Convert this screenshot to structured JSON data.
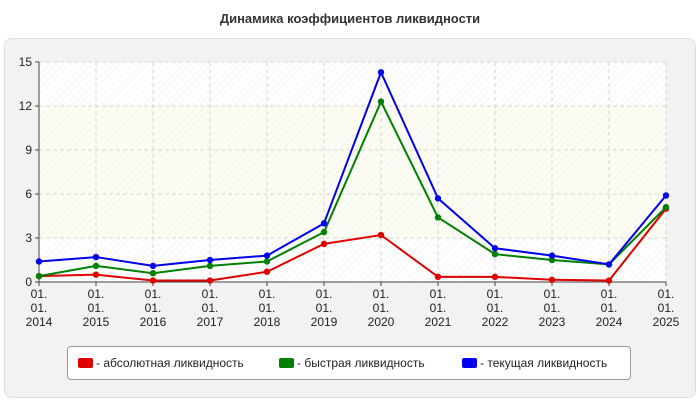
{
  "chart_data": {
    "type": "line",
    "title": "Динамика коэффициентов ликвидности",
    "xlabel": "",
    "ylabel": "",
    "categories": [
      [
        "01.",
        "01.",
        "2014"
      ],
      [
        "01.",
        "01.",
        "2015"
      ],
      [
        "01.",
        "01.",
        "2016"
      ],
      [
        "01.",
        "01.",
        "2017"
      ],
      [
        "01.",
        "01.",
        "2018"
      ],
      [
        "01.",
        "01.",
        "2019"
      ],
      [
        "01.",
        "01.",
        "2020"
      ],
      [
        "01.",
        "01.",
        "2021"
      ],
      [
        "01.",
        "01.",
        "2022"
      ],
      [
        "01.",
        "01.",
        "2023"
      ],
      [
        "01.",
        "01.",
        "2024"
      ],
      [
        "01.",
        "01.",
        "2025"
      ]
    ],
    "ylim": [
      0,
      15
    ],
    "yticks": [
      0,
      3,
      6,
      9,
      12,
      15
    ],
    "grid": true,
    "legend_position": "bottom",
    "series": [
      {
        "name": "- абсолютная ликвидность",
        "color": "#e00000",
        "values": [
          0.4,
          0.5,
          0.1,
          0.1,
          0.7,
          2.6,
          3.2,
          0.35,
          0.35,
          0.15,
          0.1,
          5.0
        ]
      },
      {
        "name": "- быстрая ликвидность",
        "color": "#008000",
        "values": [
          0.4,
          1.1,
          0.6,
          1.1,
          1.4,
          3.4,
          12.3,
          4.4,
          1.9,
          1.5,
          1.2,
          5.1
        ]
      },
      {
        "name": "- текущая ликвидность",
        "color": "#0000ee",
        "values": [
          1.4,
          1.7,
          1.1,
          1.5,
          1.8,
          4.0,
          14.3,
          5.7,
          2.3,
          1.8,
          1.2,
          5.9
        ]
      }
    ]
  }
}
